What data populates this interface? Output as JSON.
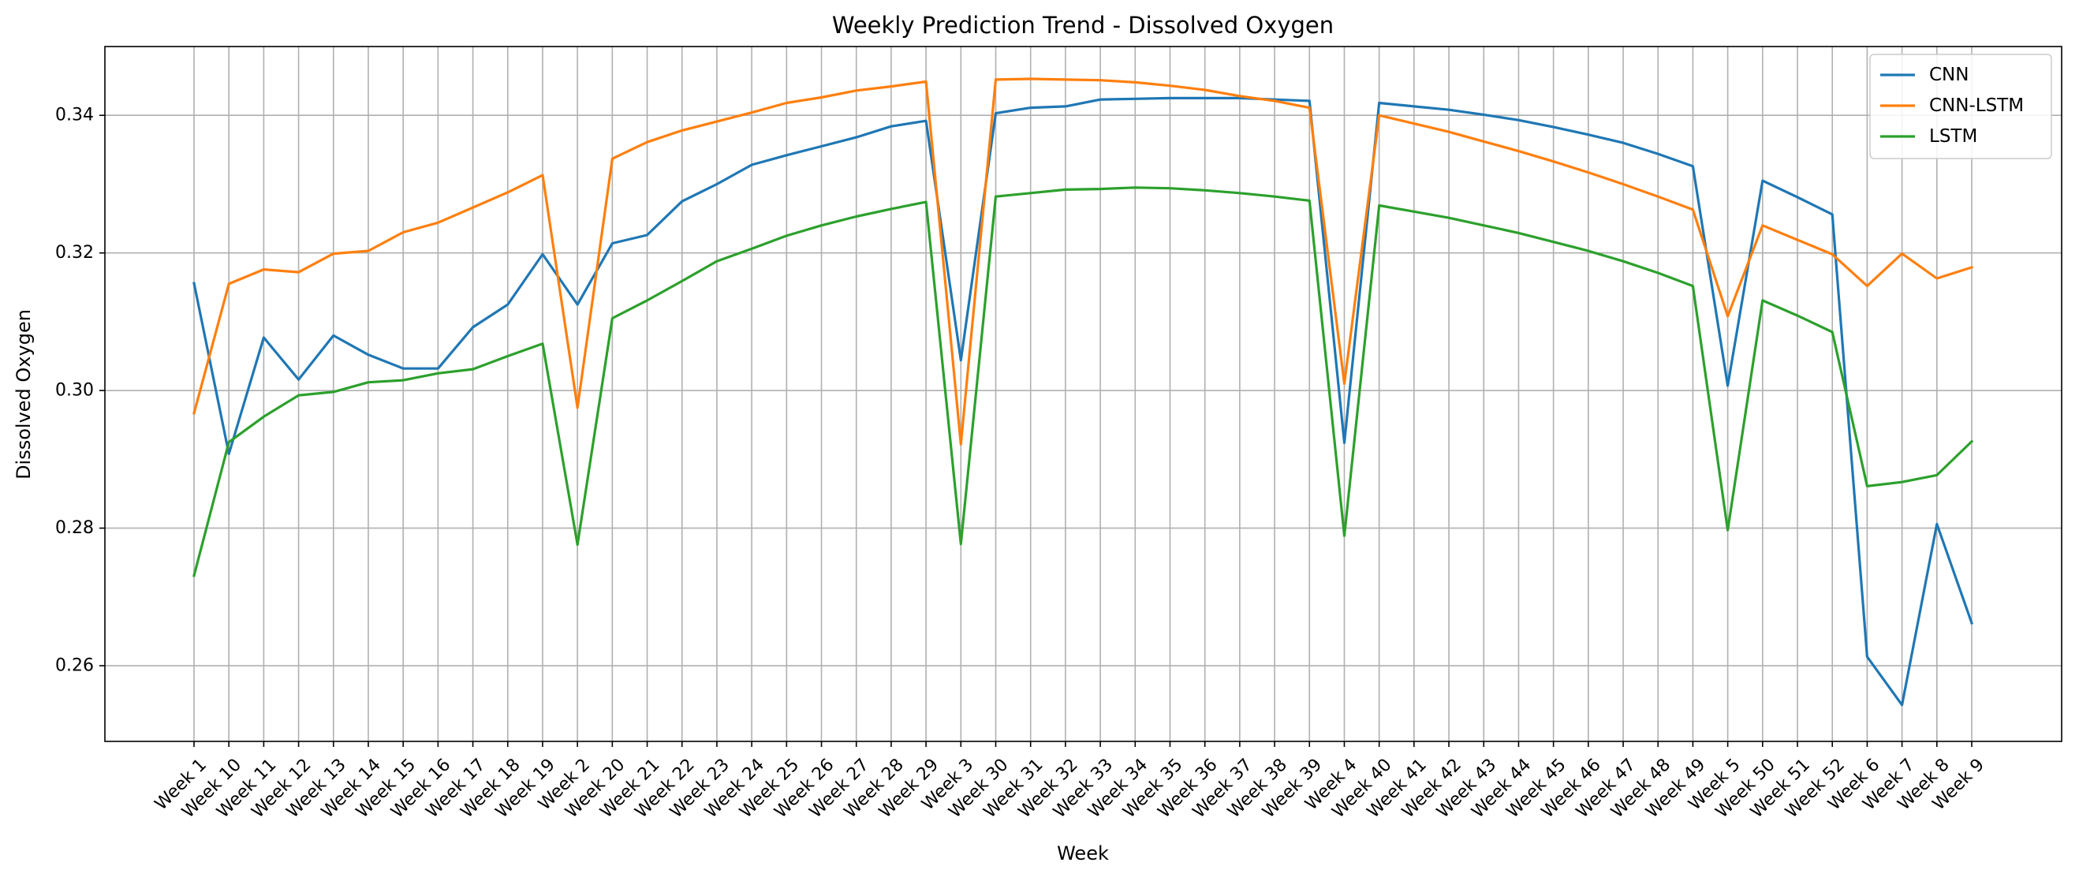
{
  "chart_data": {
    "type": "line",
    "title": "Weekly Prediction Trend - Dissolved Oxygen",
    "xlabel": "Week",
    "ylabel": "Dissolved Oxygen",
    "categories": [
      "Week 1",
      "Week 10",
      "Week 11",
      "Week 12",
      "Week 13",
      "Week 14",
      "Week 15",
      "Week 16",
      "Week 17",
      "Week 18",
      "Week 19",
      "Week 2",
      "Week 20",
      "Week 21",
      "Week 22",
      "Week 23",
      "Week 24",
      "Week 25",
      "Week 26",
      "Week 27",
      "Week 28",
      "Week 29",
      "Week 3",
      "Week 30",
      "Week 31",
      "Week 32",
      "Week 33",
      "Week 34",
      "Week 35",
      "Week 36",
      "Week 37",
      "Week 38",
      "Week 39",
      "Week 4",
      "Week 40",
      "Week 41",
      "Week 42",
      "Week 43",
      "Week 44",
      "Week 45",
      "Week 46",
      "Week 47",
      "Week 48",
      "Week 49",
      "Week 5",
      "Week 50",
      "Week 51",
      "Week 52",
      "Week 6",
      "Week 7",
      "Week 8",
      "Week 9"
    ],
    "ylim": [
      0.249,
      0.35
    ],
    "yticks": [
      0.26,
      0.28,
      0.3,
      0.32,
      0.34
    ],
    "ytick_labels": [
      "0.26",
      "0.28",
      "0.30",
      "0.32",
      "0.34"
    ],
    "grid": true,
    "legend_position": "top-right",
    "series": [
      {
        "name": "CNN",
        "color": "#1f77b4",
        "values": [
          0.3156,
          0.2908,
          0.3077,
          0.3016,
          0.308,
          0.3052,
          0.3032,
          0.3032,
          0.3092,
          0.3125,
          0.3198,
          0.3125,
          0.3214,
          0.3226,
          0.3275,
          0.33,
          0.3328,
          0.3342,
          0.3355,
          0.3368,
          0.3384,
          0.3392,
          0.3044,
          0.3403,
          0.3411,
          0.3413,
          0.3423,
          0.3424,
          0.3425,
          0.3425,
          0.3425,
          0.3423,
          0.3421,
          0.2924,
          0.3418,
          0.3413,
          0.3408,
          0.3401,
          0.3393,
          0.3383,
          0.3372,
          0.336,
          0.3344,
          0.3326,
          0.3007,
          0.3305,
          0.3281,
          0.3256,
          0.2613,
          0.2543,
          0.2806,
          0.2662
        ]
      },
      {
        "name": "CNN-LSTM",
        "color": "#ff7f0e",
        "values": [
          0.2967,
          0.3155,
          0.3176,
          0.3172,
          0.3199,
          0.3203,
          0.323,
          0.3244,
          0.3266,
          0.3288,
          0.3313,
          0.2975,
          0.3337,
          0.3361,
          0.3378,
          0.3391,
          0.3404,
          0.3418,
          0.3426,
          0.3436,
          0.3442,
          0.3449,
          0.2922,
          0.3452,
          0.3453,
          0.3452,
          0.3451,
          0.3448,
          0.3443,
          0.3437,
          0.3428,
          0.3421,
          0.3411,
          0.301,
          0.34,
          0.3388,
          0.3376,
          0.3362,
          0.3348,
          0.3333,
          0.3317,
          0.33,
          0.3282,
          0.3263,
          0.3108,
          0.324,
          0.3219,
          0.3198,
          0.3152,
          0.3199,
          0.3163,
          0.3179
        ]
      },
      {
        "name": "LSTM",
        "color": "#2ca02c",
        "values": [
          0.2731,
          0.2925,
          0.2962,
          0.2993,
          0.2998,
          0.3012,
          0.3015,
          0.3025,
          0.3031,
          0.305,
          0.3068,
          0.2776,
          0.3105,
          0.3131,
          0.3159,
          0.3188,
          0.3206,
          0.3225,
          0.324,
          0.3253,
          0.3264,
          0.3274,
          0.2777,
          0.3282,
          0.3287,
          0.3292,
          0.3293,
          0.3295,
          0.3294,
          0.3291,
          0.3287,
          0.3282,
          0.3276,
          0.2789,
          0.3269,
          0.326,
          0.3251,
          0.324,
          0.3229,
          0.3216,
          0.3203,
          0.3188,
          0.3171,
          0.3152,
          0.2797,
          0.3131,
          0.3109,
          0.3085,
          0.2861,
          0.2867,
          0.2877,
          0.2926
        ]
      }
    ]
  }
}
